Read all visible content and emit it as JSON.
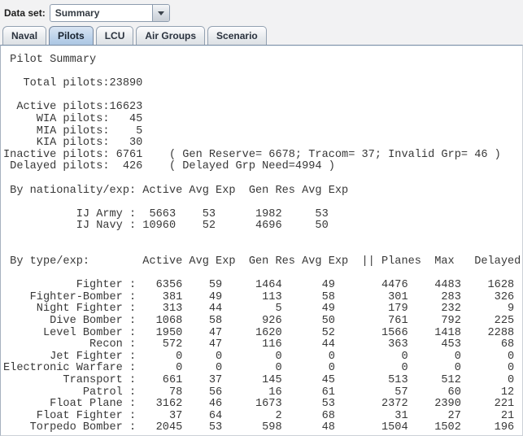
{
  "toolbar": {
    "dataset_label": "Data set:",
    "dataset_value": "Summary",
    "dropdown_icon": "chevron-down"
  },
  "tabs": [
    {
      "label": "Naval",
      "selected": false
    },
    {
      "label": "Pilots",
      "selected": true
    },
    {
      "label": "LCU",
      "selected": false
    },
    {
      "label": "Air Groups",
      "selected": false
    },
    {
      "label": "Scenario",
      "selected": false
    }
  ],
  "report": {
    "title": "Pilot Summary",
    "summary": [
      {
        "label": "Total pilots",
        "value": 23890
      },
      {
        "label": "Active pilots",
        "value": 16623,
        "blank_before": 1
      },
      {
        "label": "WIA pilots",
        "value": 45
      },
      {
        "label": "MIA pilots",
        "value": 5
      },
      {
        "label": "KIA pilots",
        "value": 30
      },
      {
        "label": "Inactive pilots",
        "value": 6761,
        "note": "( Gen Reserve= 6678; Tracom= 37; Invalid Grp= 46 )"
      },
      {
        "label": "Delayed pilots",
        "value": 426,
        "note": "( Delayed Grp Need=4994 )"
      }
    ],
    "by_nationality": {
      "label": "By nationality/exp:",
      "columns": [
        "Active",
        "Avg Exp",
        "Gen Res",
        "Avg Exp"
      ],
      "rows": [
        {
          "name": "IJ Army",
          "values": [
            5663,
            53,
            1982,
            53
          ]
        },
        {
          "name": "IJ Navy",
          "values": [
            10960,
            52,
            4696,
            50
          ]
        }
      ]
    },
    "by_type": {
      "label": "By type/exp:",
      "columns": [
        "Active",
        "Avg Exp",
        "Gen Res",
        "Avg Exp",
        "|| Planes",
        "Max",
        "Delayed"
      ],
      "rows": [
        {
          "name": "Fighter",
          "values": [
            6356,
            59,
            1464,
            49,
            4476,
            4483,
            1628
          ]
        },
        {
          "name": "Fighter-Bomber",
          "values": [
            381,
            49,
            113,
            58,
            301,
            283,
            326
          ]
        },
        {
          "name": "Night Fighter",
          "values": [
            313,
            44,
            5,
            49,
            179,
            232,
            9
          ]
        },
        {
          "name": "Dive Bomber",
          "values": [
            1068,
            58,
            926,
            50,
            761,
            792,
            225
          ]
        },
        {
          "name": "Level Bomber",
          "values": [
            1950,
            47,
            1620,
            52,
            1566,
            1418,
            2288
          ]
        },
        {
          "name": "Recon",
          "values": [
            572,
            47,
            116,
            44,
            363,
            453,
            68
          ]
        },
        {
          "name": "Jet Fighter",
          "values": [
            0,
            0,
            0,
            0,
            0,
            0,
            0
          ]
        },
        {
          "name": "Electronic Warfare",
          "values": [
            0,
            0,
            0,
            0,
            0,
            0,
            0
          ]
        },
        {
          "name": "Transport",
          "values": [
            661,
            37,
            145,
            45,
            513,
            512,
            0
          ]
        },
        {
          "name": "Patrol",
          "values": [
            78,
            56,
            16,
            61,
            57,
            60,
            12
          ]
        },
        {
          "name": "Float Plane",
          "values": [
            3162,
            46,
            1673,
            53,
            2372,
            2390,
            221
          ]
        },
        {
          "name": "Float Fighter",
          "values": [
            37,
            64,
            2,
            68,
            31,
            27,
            21
          ]
        },
        {
          "name": "Torpedo Bomber",
          "values": [
            2045,
            53,
            598,
            48,
            1504,
            1502,
            196
          ]
        }
      ]
    }
  },
  "colors": {
    "selected_tab": "#b3cce7",
    "tab_border": "#93a1b1",
    "content_border": "#7e90a6",
    "report_text": "#383838",
    "background": "#f2f2f3"
  }
}
